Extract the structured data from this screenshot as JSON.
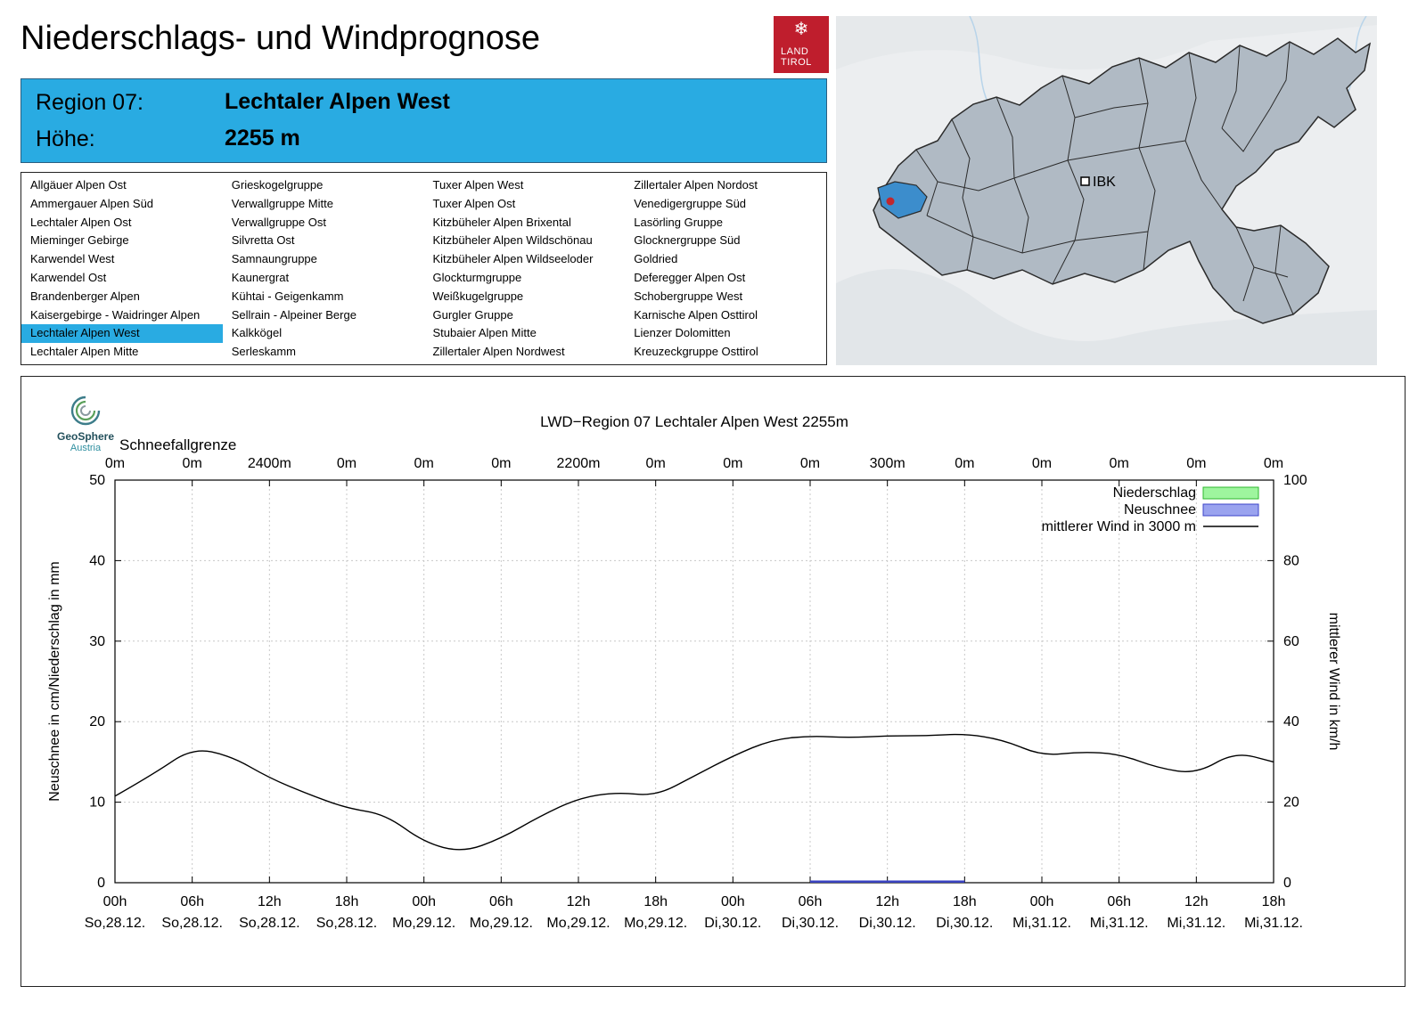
{
  "page_title": "Niederschlags- und Windprognose",
  "logo": {
    "line1": "LAND",
    "line2": "TIROL",
    "snowflake_icon": "❄"
  },
  "region_header": {
    "region_label": "Region 07:",
    "region_value": "Lechtaler Alpen West",
    "altitude_label": "Höhe:",
    "altitude_value": "2255 m",
    "background_color": "#29abe2"
  },
  "region_list": {
    "selected": "Lechtaler Alpen West",
    "highlight_color": "#29abe2",
    "columns": [
      [
        "Allgäuer Alpen Ost",
        "Ammergauer Alpen Süd",
        "Lechtaler Alpen Ost",
        "Mieminger Gebirge",
        "Karwendel West",
        "Karwendel Ost",
        "Brandenberger Alpen",
        "Kaisergebirge - Waidringer Alpen",
        "Lechtaler Alpen West",
        "Lechtaler Alpen Mitte"
      ],
      [
        "Grieskogelgruppe",
        "Verwallgruppe Mitte",
        "Verwallgruppe Ost",
        "Silvretta Ost",
        "Samnaungruppe",
        "Kaunergrat",
        "Kühtai - Geigenkamm",
        "Sellrain - Alpeiner Berge",
        "Kalkkögel",
        "Serleskamm"
      ],
      [
        "Tuxer Alpen West",
        "Tuxer Alpen Ost",
        "Kitzbüheler Alpen Brixental",
        "Kitzbüheler Alpen Wildschönau",
        "Kitzbüheler Alpen Wildseeloder",
        "Glockturmgruppe",
        "Weißkugelgruppe",
        "Gurgler Gruppe",
        "Stubaier Alpen Mitte",
        "Zillertaler Alpen Nordwest"
      ],
      [
        "Zillertaler Alpen Nordost",
        "Venedigergruppe Süd",
        "Lasörling Gruppe",
        "Glocknergruppe Süd",
        "Goldried",
        "Deferegger Alpen Ost",
        "Schobergruppe West",
        "Karnische Alpen Osttirol",
        "Lienzer Dolomitten",
        "Kreuzeckgruppe Osttirol"
      ]
    ]
  },
  "map": {
    "marker_label": "IBK",
    "selected_region": "Lechtaler Alpen West",
    "region_fill": "#b0bac4",
    "highlight_fill": "#3c8dcc",
    "marker_dot_color": "#c1272d"
  },
  "geosphere_logo": {
    "name": "GeoSphere",
    "subname": "Austria"
  },
  "chart_data": {
    "type": "line",
    "title": "LWD−Region 07 Lechtaler Alpen West 2255m",
    "top_axis_label": "Schneefallgrenze",
    "top_ticks": [
      "0m",
      "0m",
      "2400m",
      "0m",
      "0m",
      "0m",
      "2200m",
      "0m",
      "0m",
      "0m",
      "300m",
      "0m",
      "0m",
      "0m",
      "0m",
      "0m"
    ],
    "x_ticks": [
      {
        "hour": "00h",
        "date": "So,28.12."
      },
      {
        "hour": "06h",
        "date": "So,28.12."
      },
      {
        "hour": "12h",
        "date": "So,28.12."
      },
      {
        "hour": "18h",
        "date": "So,28.12."
      },
      {
        "hour": "00h",
        "date": "Mo,29.12."
      },
      {
        "hour": "06h",
        "date": "Mo,29.12."
      },
      {
        "hour": "12h",
        "date": "Mo,29.12."
      },
      {
        "hour": "18h",
        "date": "Mo,29.12."
      },
      {
        "hour": "00h",
        "date": "Di,30.12."
      },
      {
        "hour": "06h",
        "date": "Di,30.12."
      },
      {
        "hour": "12h",
        "date": "Di,30.12."
      },
      {
        "hour": "18h",
        "date": "Di,30.12."
      },
      {
        "hour": "00h",
        "date": "Mi,31.12."
      },
      {
        "hour": "06h",
        "date": "Mi,31.12."
      },
      {
        "hour": "12h",
        "date": "Mi,31.12."
      },
      {
        "hour": "18h",
        "date": "Mi,31.12."
      }
    ],
    "ylabel_left": "Neuschnee in cm/Niederschlag in mm",
    "ylabel_right": "mittlerer Wind in km/h",
    "ylim_left": [
      0,
      50
    ],
    "ylim_right": [
      0,
      100
    ],
    "x_range_hours": [
      0,
      90
    ],
    "grid": true,
    "legend": [
      {
        "label": "Niederschlag",
        "type": "box",
        "color": "#9ef59e",
        "stroke": "#2db82d"
      },
      {
        "label": "Neuschnee",
        "type": "box",
        "color": "#9aa3ef",
        "stroke": "#3c46c8"
      },
      {
        "label": "mittlerer Wind in 3000 m",
        "type": "line",
        "color": "#000000"
      }
    ],
    "series": [
      {
        "name": "mittlerer Wind in 3000 m",
        "axis": "right",
        "unit": "km/h",
        "color": "#000000",
        "x_hours": [
          0,
          3,
          6,
          9,
          12,
          15,
          18,
          21,
          24,
          27,
          30,
          33,
          36,
          39,
          42,
          45,
          48,
          51,
          54,
          57,
          60,
          63,
          66,
          69,
          72,
          75,
          78,
          81,
          84,
          87,
          90
        ],
        "values": [
          21.5,
          27,
          33.5,
          31.5,
          26,
          22,
          18.5,
          17,
          10,
          7.5,
          11,
          16.5,
          21,
          22.5,
          21.5,
          26.5,
          31.5,
          35.5,
          36.5,
          36,
          36.5,
          36.5,
          37,
          35.5,
          31.5,
          32.5,
          32,
          28.5,
          27,
          32.5,
          30
        ]
      },
      {
        "name": "Neuschnee",
        "axis": "left",
        "unit": "cm",
        "color": "#3a43c0",
        "segment": {
          "x_start_hour": 54,
          "x_end_hour": 66,
          "value": 0.2
        }
      }
    ]
  }
}
